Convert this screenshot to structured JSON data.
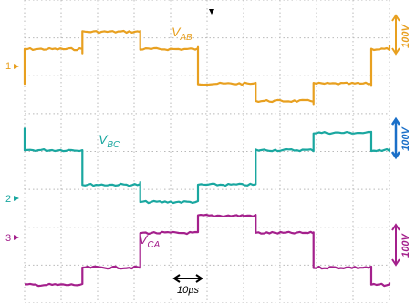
{
  "chart_data": {
    "type": "line",
    "title": "",
    "xlabel": "",
    "ylabel": "",
    "grid": true,
    "grid_divisions": {
      "x": 10,
      "y": 8
    },
    "time_per_division": "10µs",
    "series": [
      {
        "name": "V_AB",
        "label_main": "V",
        "label_sub": "AB",
        "channel": "1",
        "scale": "100V",
        "color": "#E8A020",
        "waveform": "six-step",
        "period_us": 95,
        "phase_deg": 0,
        "levels_div": [
          0,
          1,
          2,
          1,
          0,
          -1,
          -2,
          -1
        ]
      },
      {
        "name": "V_BC",
        "label_main": "V",
        "label_sub": "BC",
        "channel": "2",
        "scale": "100V",
        "color": "#1AA7A0",
        "waveform": "six-step",
        "period_us": 95,
        "phase_deg": -120,
        "levels_div": [
          0,
          1,
          2,
          1,
          0,
          -1,
          -2,
          -1
        ]
      },
      {
        "name": "V_CA",
        "label_main": "V",
        "label_sub": "CA",
        "channel": "3",
        "scale": "100V",
        "color": "#A4208C",
        "waveform": "six-step",
        "period_us": 95,
        "phase_deg": 120,
        "levels_div": [
          0,
          1,
          2,
          1,
          0,
          -1,
          -2,
          -1
        ]
      }
    ],
    "annotations": {
      "time_marker": "10µs"
    }
  },
  "colors": {
    "grid": "#B9B9B9",
    "marker": "#000000"
  }
}
